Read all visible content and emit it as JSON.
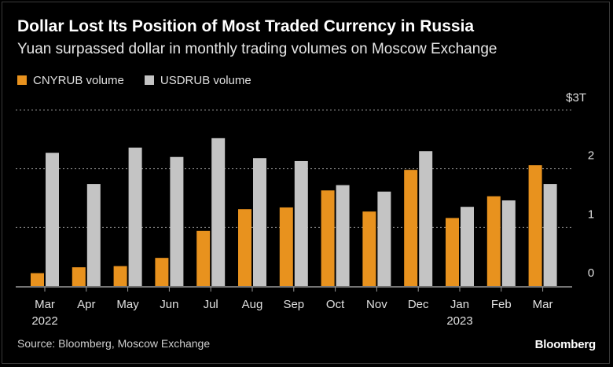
{
  "title": "Dollar Lost Its Position of Most Traded Currency in Russia",
  "subtitle": "Yuan surpassed dollar in monthly trading volumes on Moscow Exchange",
  "source": "Source: Bloomberg, Moscow Exchange",
  "brand": "Bloomberg",
  "unit_label": "$3T",
  "colors": {
    "cny": "#e8921e",
    "usd": "#c4c4c4",
    "grid": "#8a8a8a",
    "axis": "#9a9a9a",
    "text": "#e0e0e0"
  },
  "chart_data": {
    "type": "bar",
    "title": "Dollar Lost Its Position of Most Traded Currency in Russia",
    "subtitle": "Yuan surpassed dollar in monthly trading volumes on Moscow Exchange",
    "xlabel": "",
    "ylabel": "",
    "ylim": [
      0,
      3
    ],
    "yticks": [
      0,
      1,
      2,
      3
    ],
    "ytick_labels": [
      "0",
      "1",
      "2",
      "$3T"
    ],
    "grid": true,
    "legend_position": "top-left",
    "categories": [
      "Mar",
      "Apr",
      "May",
      "Jun",
      "Jul",
      "Aug",
      "Sep",
      "Oct",
      "Nov",
      "Dec",
      "Jan",
      "Feb",
      "Mar"
    ],
    "category_sublabels": [
      "2022",
      "",
      "",
      "",
      "",
      "",
      "",
      "",
      "",
      "",
      "2023",
      "",
      ""
    ],
    "series": [
      {
        "name": "CNYRUB volume",
        "color": "#e8921e",
        "values": [
          0.22,
          0.32,
          0.34,
          0.48,
          0.94,
          1.31,
          1.34,
          1.63,
          1.27,
          1.98,
          1.16,
          1.53,
          2.06
        ]
      },
      {
        "name": "USDRUB volume",
        "color": "#c4c4c4",
        "values": [
          2.27,
          1.74,
          2.36,
          2.2,
          2.52,
          2.18,
          2.13,
          1.72,
          1.61,
          2.3,
          1.35,
          1.46,
          1.74
        ]
      }
    ]
  }
}
